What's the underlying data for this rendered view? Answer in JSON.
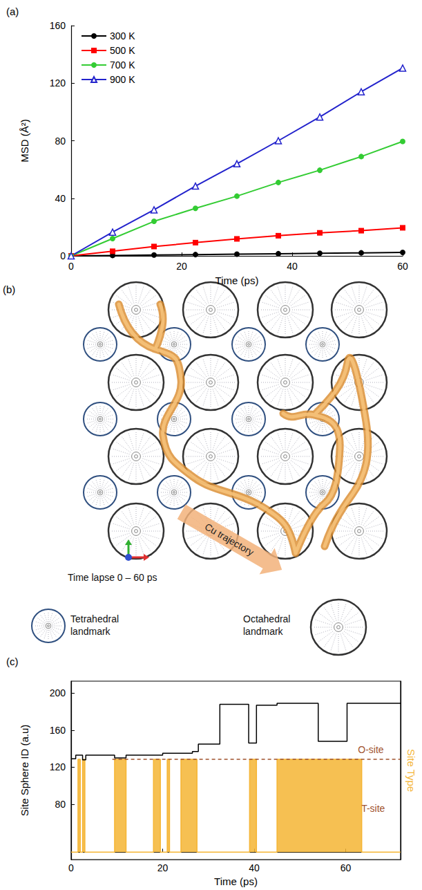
{
  "chart_data": [
    {
      "type": "line",
      "title": "(a)",
      "x_label": "Time (ps)",
      "y_label": "MSD (Å²)",
      "x": [
        0,
        7.5,
        15,
        22.5,
        30,
        37.5,
        45,
        52.5,
        60
      ],
      "series": [
        {
          "name": "300 K",
          "color": "#000000",
          "marker": "circle",
          "values": [
            0,
            0.3,
            0.6,
            0.9,
            1.2,
            1.5,
            1.8,
            2.1,
            2.4
          ]
        },
        {
          "name": "500 K",
          "color": "#ff0000",
          "marker": "square",
          "values": [
            0,
            3.2,
            6.5,
            9.2,
            11.8,
            14,
            16,
            17.5,
            19.5
          ]
        },
        {
          "name": "700 K",
          "color": "#33cc33",
          "marker": "circle",
          "values": [
            0,
            12,
            24,
            33,
            41.5,
            51,
            59.5,
            69,
            79.5
          ]
        },
        {
          "name": "900 K",
          "color": "#2222cc",
          "marker": "triangle_open",
          "values": [
            0,
            16.5,
            32,
            48.5,
            64,
            80,
            96.5,
            114,
            130.5
          ]
        }
      ],
      "xlim": [
        0,
        60
      ],
      "xticks": [
        0,
        20,
        40,
        60
      ],
      "ylim": [
        0,
        160
      ],
      "yticks": [
        0,
        40,
        80,
        120,
        160
      ],
      "legend": "upper left",
      "grid": false
    },
    {
      "type": "line",
      "title": "(c)",
      "x_label": "Time (ps)",
      "y_label": "Site Sphere ID (a.u)",
      "y2_label": "Site Type",
      "xlim": [
        0,
        72
      ],
      "xticks": [
        0,
        20,
        40,
        60
      ],
      "ylim": [
        20,
        213
      ],
      "yticks": [
        80,
        120,
        160,
        200
      ],
      "y2lim": [
        -0.08,
        1.84
      ],
      "series": [
        {
          "color": "#000000",
          "line_style": "step",
          "x": [
            0,
            1,
            2.5,
            3.2,
            9.5,
            12,
            20,
            26.5,
            27.8,
            32.5,
            38.8,
            40.5,
            45,
            54,
            60.3,
            72
          ],
          "values": [
            129,
            133,
            128,
            133,
            130,
            133,
            135,
            137,
            145,
            188,
            146,
            187,
            189,
            148,
            189,
            189
          ]
        },
        {
          "axis": "y2",
          "color": "#f5b534",
          "line_style": "step_filled",
          "x": [
            0,
            1.5,
            2,
            2.5,
            3,
            9.5,
            12,
            18,
            19.5,
            21,
            21.5,
            24,
            27.5,
            39,
            40.5,
            45,
            63.5,
            72
          ],
          "values": [
            0,
            1,
            0,
            1,
            0,
            1,
            0,
            1,
            0,
            1,
            0,
            1,
            0,
            1,
            0,
            1,
            0,
            0
          ]
        },
        {
          "axis": "y2",
          "color": "#a0522d",
          "line_style": "dashed",
          "x": [
            9,
            72
          ],
          "values": [
            1,
            1
          ]
        }
      ],
      "annotations": [
        {
          "text": "O-site",
          "x": 65.5,
          "y": 1.1,
          "axis": "y2"
        },
        {
          "text": "T-site",
          "x": 66,
          "y": 0.47,
          "axis": "y2"
        }
      ],
      "grid": false
    }
  ],
  "diagram": {
    "title": "(b)",
    "time_lapse": "Time lapse 0 – 60 ps",
    "trajectory_label": "Cu trajectory",
    "legend": [
      {
        "label": "Tetrahedral landmark",
        "color": "#2f4f7f"
      },
      {
        "label": "Octahedral landmark",
        "color": "#333333"
      }
    ]
  }
}
